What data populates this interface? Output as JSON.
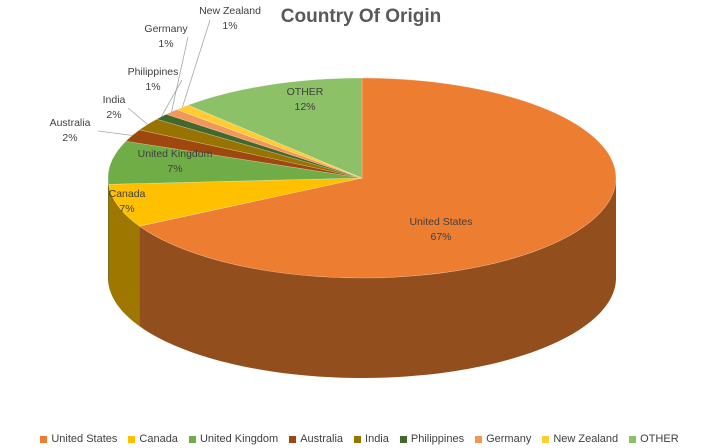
{
  "chart_data": {
    "type": "pie",
    "title": "Country Of Origin",
    "legend_position": "bottom",
    "slices": [
      {
        "name": "United States",
        "value": 67,
        "label": "67%",
        "color": "#ED7D31"
      },
      {
        "name": "Canada",
        "value": 7,
        "label": "7%",
        "color": "#FFC000"
      },
      {
        "name": "United Kingdom",
        "value": 7,
        "label": "7%",
        "color": "#70AD47"
      },
      {
        "name": "Australia",
        "value": 2,
        "label": "2%",
        "color": "#9E480E"
      },
      {
        "name": "India",
        "value": 2,
        "label": "2%",
        "color": "#997300"
      },
      {
        "name": "Philippines",
        "value": 1,
        "label": "1%",
        "color": "#43682B"
      },
      {
        "name": "Germany",
        "value": 1,
        "label": "1%",
        "color": "#F1975A"
      },
      {
        "name": "New Zealand",
        "value": 1,
        "label": "1%",
        "color": "#FFCD33"
      },
      {
        "name": "OTHER",
        "value": 12,
        "label": "12%",
        "color": "#8CC168"
      }
    ]
  }
}
